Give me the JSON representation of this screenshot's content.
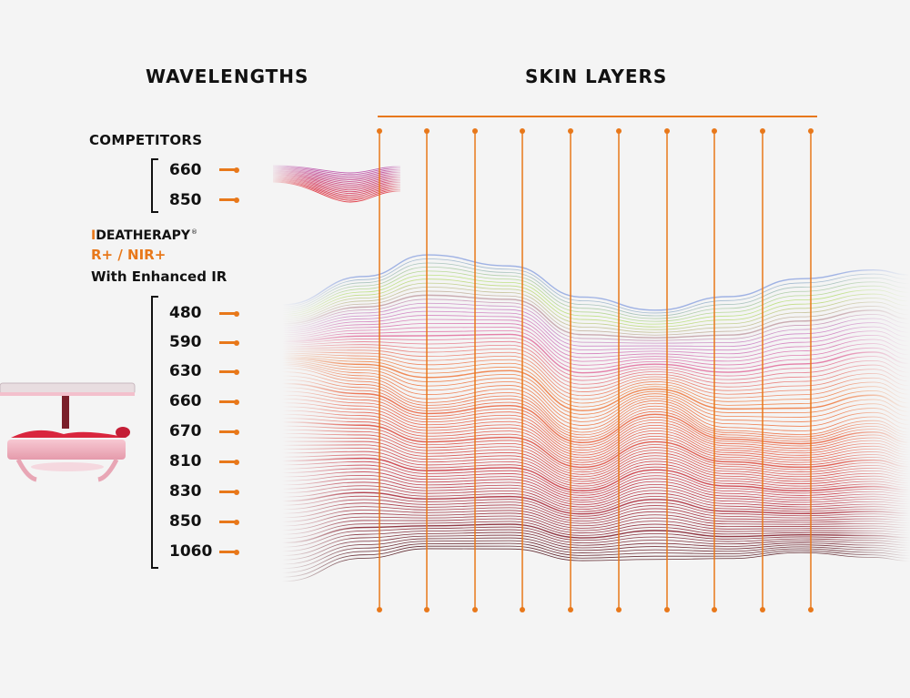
{
  "headings": {
    "wavelengths": "WAVELENGTHS",
    "skin_layers": "SKIN LAYERS"
  },
  "competitors": {
    "label": "COMPETITORS",
    "wavelengths": [
      "660",
      "850"
    ]
  },
  "product": {
    "brand_first": "I",
    "brand_rest": "DEATHERAPY",
    "trademark": "®",
    "model": "R+ / NIR+",
    "subtitle": "With Enhanced IR",
    "wavelengths": [
      "480",
      "590",
      "630",
      "660",
      "670",
      "810",
      "830",
      "850",
      "1060"
    ]
  },
  "colors": {
    "accent": "#e8781a",
    "text": "#111111",
    "background": "#f4f4f4"
  }
}
